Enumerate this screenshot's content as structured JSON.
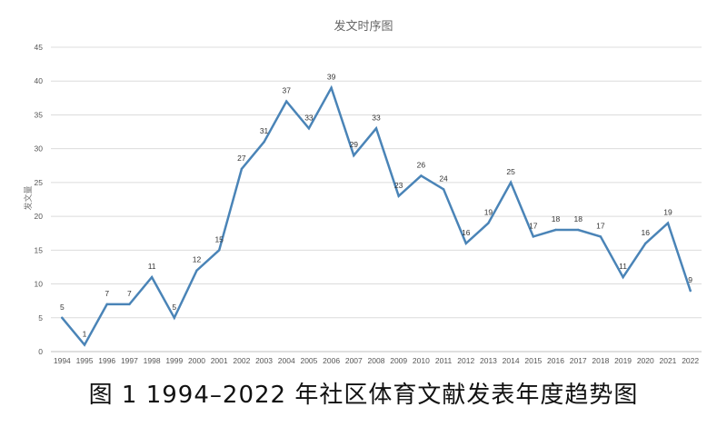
{
  "caption": "图 1 1994–2022 年社区体育文献发表年度趋势图",
  "chart_data": {
    "type": "line",
    "title": "发文时序图",
    "ylabel": "发文量",
    "xlabel": "",
    "ylim": [
      0,
      45
    ],
    "yticks": [
      0,
      5,
      10,
      15,
      20,
      25,
      30,
      35,
      40,
      45
    ],
    "grid": true,
    "legend": "none",
    "line_color": "#4a84b7",
    "categories": [
      "1994",
      "1995",
      "1996",
      "1997",
      "1998",
      "1999",
      "2000",
      "2001",
      "2002",
      "2003",
      "2004",
      "2005",
      "2006",
      "2007",
      "2008",
      "2009",
      "2010",
      "2011",
      "2012",
      "2013",
      "2014",
      "2015",
      "2016",
      "2017",
      "2018",
      "2019",
      "2020",
      "2021",
      "2022"
    ],
    "series": [
      {
        "values": [
          5,
          1,
          7,
          7,
          11,
          5,
          12,
          15,
          27,
          31,
          37,
          33,
          39,
          29,
          33,
          23,
          26,
          24,
          16,
          19,
          25,
          17,
          18,
          18,
          17,
          11,
          16,
          19,
          9
        ]
      }
    ]
  }
}
